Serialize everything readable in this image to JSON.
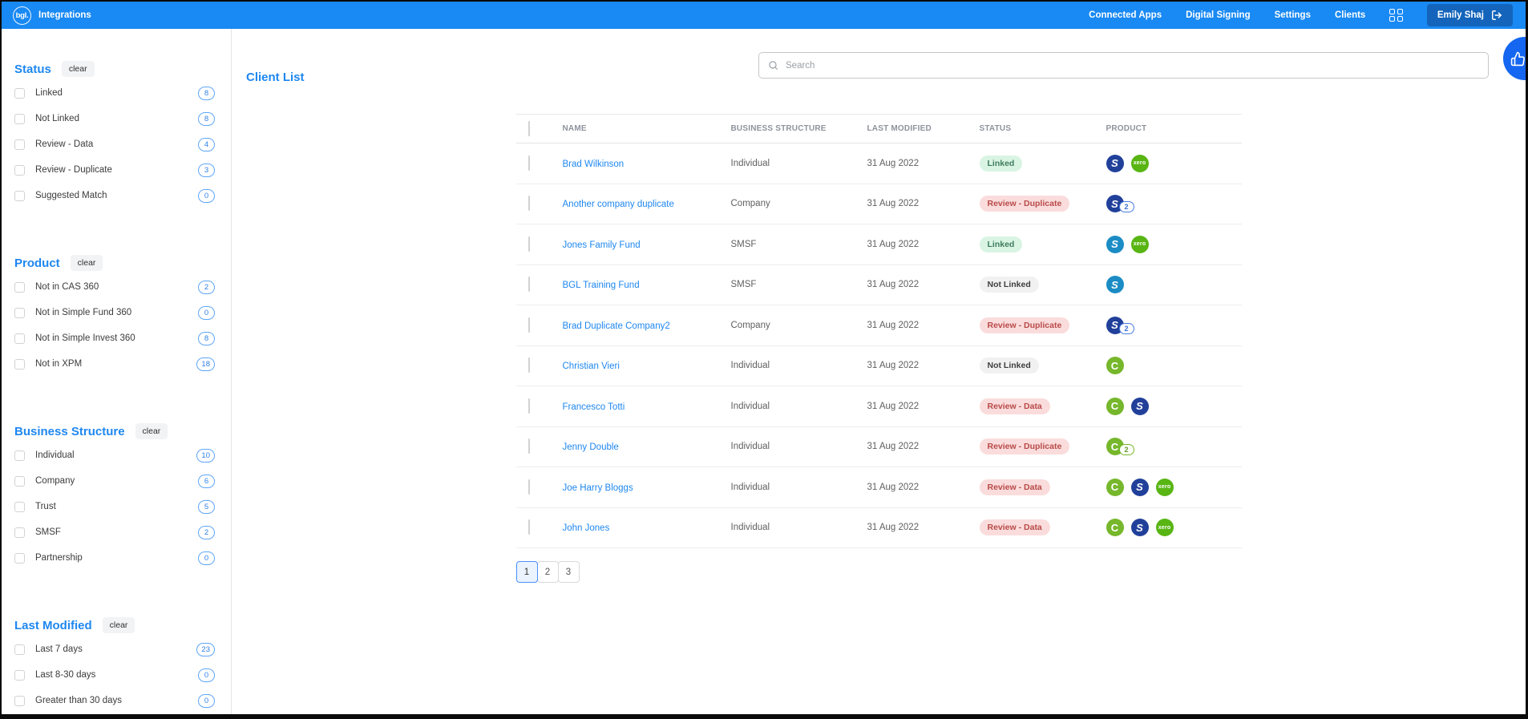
{
  "colors": {
    "nav_blue": "#1989f3",
    "accent_blue": "#1e87f0",
    "user_button_blue": "#1464bb",
    "linked_pill_bg": "#d9f4e3",
    "review_pill_bg": "#fadcdc",
    "not_linked_pill_bg": "#f1f1f2",
    "cas360_green": "#76b72b",
    "simple_fund_360_blue": "#1b8cc4",
    "simple_invest_360_navy": "#21409a",
    "xero_green": "#58b513"
  },
  "nav": {
    "logo_text": "bgl.",
    "app_title": "Integrations",
    "links": [
      {
        "label": "Connected Apps"
      },
      {
        "label": "Digital Signing"
      },
      {
        "label": "Settings"
      },
      {
        "label": "Clients"
      }
    ],
    "user_label": "Emily Shaj"
  },
  "sidebar": {
    "clear_label": "clear",
    "sections": [
      {
        "title": "Status",
        "items": [
          {
            "label": "Linked",
            "count": "8"
          },
          {
            "label": "Not Linked",
            "count": "8"
          },
          {
            "label": "Review - Data",
            "count": "4"
          },
          {
            "label": "Review - Duplicate",
            "count": "3"
          },
          {
            "label": "Suggested Match",
            "count": "0"
          }
        ]
      },
      {
        "title": "Product",
        "items": [
          {
            "label": "Not in CAS 360",
            "count": "2"
          },
          {
            "label": "Not in Simple Fund 360",
            "count": "0"
          },
          {
            "label": "Not in Simple Invest 360",
            "count": "8"
          },
          {
            "label": "Not in XPM",
            "count": "18"
          }
        ]
      },
      {
        "title": "Business Structure",
        "items": [
          {
            "label": "Individual",
            "count": "10"
          },
          {
            "label": "Company",
            "count": "6"
          },
          {
            "label": "Trust",
            "count": "5"
          },
          {
            "label": "SMSF",
            "count": "2"
          },
          {
            "label": "Partnership",
            "count": "0"
          }
        ]
      },
      {
        "title": "Last Modified",
        "items": [
          {
            "label": "Last 7 days",
            "count": "23"
          },
          {
            "label": "Last 8-30 days",
            "count": "0"
          },
          {
            "label": "Greater than 30 days",
            "count": "0"
          }
        ]
      }
    ]
  },
  "main": {
    "title": "Client List",
    "search": {
      "placeholder": "Search"
    },
    "table": {
      "columns": [
        "NAME",
        "BUSINESS STRUCTURE",
        "LAST MODIFIED",
        "STATUS",
        "PRODUCT"
      ],
      "rows": [
        {
          "name": "Brad Wilkinson",
          "structure": "Individual",
          "modified": "31 Aug 2022",
          "status": "Linked",
          "status_type": "linked",
          "products": [
            {
              "product": "simple-invest-360"
            },
            {
              "product": "xero"
            }
          ]
        },
        {
          "name": "Another company duplicate",
          "structure": "Company",
          "modified": "31 Aug 2022",
          "status": "Review - Duplicate",
          "status_type": "review",
          "products": [
            {
              "product": "simple-invest-360",
              "badge": "2"
            }
          ]
        },
        {
          "name": "Jones Family Fund",
          "structure": "SMSF",
          "modified": "31 Aug 2022",
          "status": "Linked",
          "status_type": "linked",
          "products": [
            {
              "product": "simple-fund-360"
            },
            {
              "product": "xero"
            }
          ]
        },
        {
          "name": "BGL Training Fund",
          "structure": "SMSF",
          "modified": "31 Aug 2022",
          "status": "Not Linked",
          "status_type": "not-linked",
          "products": [
            {
              "product": "simple-fund-360"
            }
          ]
        },
        {
          "name": "Brad Duplicate Company2",
          "structure": "Company",
          "modified": "31 Aug 2022",
          "status": "Review - Duplicate",
          "status_type": "review",
          "products": [
            {
              "product": "simple-invest-360",
              "badge": "2"
            }
          ]
        },
        {
          "name": "Christian Vieri",
          "structure": "Individual",
          "modified": "31 Aug 2022",
          "status": "Not Linked",
          "status_type": "not-linked",
          "products": [
            {
              "product": "cas-360"
            }
          ]
        },
        {
          "name": "Francesco Totti",
          "structure": "Individual",
          "modified": "31 Aug 2022",
          "status": "Review - Data",
          "status_type": "review",
          "products": [
            {
              "product": "cas-360"
            },
            {
              "product": "simple-invest-360"
            }
          ]
        },
        {
          "name": "Jenny Double",
          "structure": "Individual",
          "modified": "31 Aug 2022",
          "status": "Review - Duplicate",
          "status_type": "review",
          "products": [
            {
              "product": "cas-360",
              "badge": "2"
            }
          ]
        },
        {
          "name": "Joe Harry Bloggs",
          "structure": "Individual",
          "modified": "31 Aug 2022",
          "status": "Review - Data",
          "status_type": "review",
          "products": [
            {
              "product": "cas-360"
            },
            {
              "product": "simple-invest-360"
            },
            {
              "product": "xero"
            }
          ]
        },
        {
          "name": "John Jones",
          "structure": "Individual",
          "modified": "31 Aug 2022",
          "status": "Review - Data",
          "status_type": "review",
          "products": [
            {
              "product": "cas-360"
            },
            {
              "product": "simple-invest-360"
            },
            {
              "product": "xero"
            }
          ]
        }
      ]
    },
    "pagination": {
      "pages": [
        "1",
        "2",
        "3"
      ],
      "active": "1"
    }
  }
}
